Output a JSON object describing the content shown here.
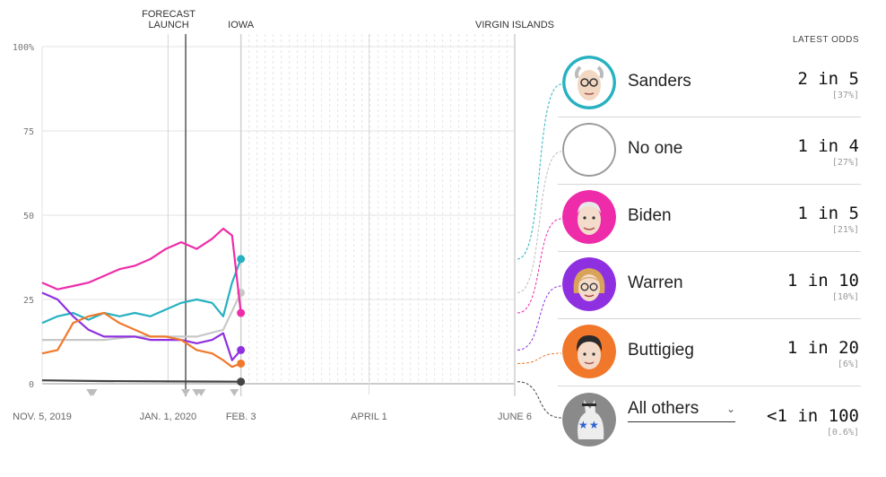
{
  "chart_data": {
    "type": "line",
    "ylim": [
      0,
      100
    ],
    "yticks": [
      "100%",
      "75",
      "50",
      "25",
      "0"
    ],
    "ytick_values": [
      100,
      75,
      50,
      25,
      0
    ],
    "x_range": [
      "2019-11-05",
      "2020-06-06"
    ],
    "xticks": [
      {
        "label": "NOV. 5, 2019",
        "date": "2019-11-05"
      },
      {
        "label": "JAN. 1, 2020",
        "date": "2020-01-01"
      },
      {
        "label": "FEB. 3",
        "date": "2020-02-03"
      },
      {
        "label": "APRIL 1",
        "date": "2020-04-01"
      },
      {
        "label": "JUNE 6",
        "date": "2020-06-06"
      }
    ],
    "events": [
      {
        "label_lines": [
          "FORECAST",
          "LAUNCH"
        ],
        "date": "2020-01-09"
      },
      {
        "label_lines": [
          "IOWA"
        ],
        "date": "2020-02-03"
      },
      {
        "label_lines": [
          "VIRGIN ISLANDS"
        ],
        "date": "2020-06-06"
      }
    ],
    "series": [
      {
        "key": "sanders",
        "color": "#27b1c1",
        "x": [
          "2019-11-05",
          "2019-11-12",
          "2019-11-19",
          "2019-11-26",
          "2019-12-03",
          "2019-12-10",
          "2019-12-17",
          "2019-12-24",
          "2019-12-31",
          "2020-01-07",
          "2020-01-14",
          "2020-01-21",
          "2020-01-26",
          "2020-01-30",
          "2020-02-03"
        ],
        "values": [
          18,
          20,
          21,
          19,
          21,
          20,
          21,
          20,
          22,
          24,
          25,
          24,
          20,
          30,
          37
        ]
      },
      {
        "key": "no_one",
        "color": "#c8c8c8",
        "x": [
          "2019-11-05",
          "2019-11-19",
          "2019-12-03",
          "2019-12-17",
          "2019-12-31",
          "2020-01-14",
          "2020-01-26",
          "2020-02-03"
        ],
        "values": [
          13,
          13,
          13,
          14,
          14,
          14,
          16,
          27
        ]
      },
      {
        "key": "biden",
        "color": "#ee2ca9",
        "x": [
          "2019-11-05",
          "2019-11-12",
          "2019-11-19",
          "2019-11-26",
          "2019-12-03",
          "2019-12-10",
          "2019-12-17",
          "2019-12-24",
          "2019-12-31",
          "2020-01-07",
          "2020-01-14",
          "2020-01-21",
          "2020-01-26",
          "2020-01-30",
          "2020-02-03"
        ],
        "values": [
          30,
          28,
          29,
          30,
          32,
          34,
          35,
          37,
          40,
          42,
          40,
          43,
          46,
          44,
          21
        ]
      },
      {
        "key": "warren",
        "color": "#8f30e0",
        "x": [
          "2019-11-05",
          "2019-11-12",
          "2019-11-19",
          "2019-11-26",
          "2019-12-03",
          "2019-12-10",
          "2019-12-17",
          "2019-12-24",
          "2019-12-31",
          "2020-01-07",
          "2020-01-14",
          "2020-01-21",
          "2020-01-26",
          "2020-01-30",
          "2020-02-03"
        ],
        "values": [
          27,
          25,
          20,
          16,
          14,
          14,
          14,
          13,
          13,
          13,
          12,
          13,
          15,
          7,
          10
        ]
      },
      {
        "key": "buttigieg",
        "color": "#f1782b",
        "x": [
          "2019-11-05",
          "2019-11-12",
          "2019-11-19",
          "2019-11-26",
          "2019-12-03",
          "2019-12-10",
          "2019-12-17",
          "2019-12-24",
          "2019-12-31",
          "2020-01-07",
          "2020-01-14",
          "2020-01-21",
          "2020-01-26",
          "2020-01-30",
          "2020-02-03"
        ],
        "values": [
          9,
          10,
          18,
          20,
          21,
          18,
          16,
          14,
          14,
          13,
          10,
          9,
          7,
          5,
          6
        ]
      },
      {
        "key": "all_others",
        "color": "#444444",
        "x": [
          "2019-11-05",
          "2019-12-01",
          "2020-01-01",
          "2020-02-03"
        ],
        "values": [
          1,
          0.8,
          0.7,
          0.6
        ]
      }
    ]
  },
  "latest_odds_header": "LATEST ODDS",
  "candidates": [
    {
      "key": "sanders",
      "name": "Sanders",
      "odds": "2 in 5",
      "pct": "[37%]",
      "color": "#27b1c1",
      "avatar_icon": "sanders-portrait-icon"
    },
    {
      "key": "no_one",
      "name": "No one",
      "odds": "1 in 4",
      "pct": "[27%]",
      "color": "#999999",
      "avatar_icon": "empty-circle-icon"
    },
    {
      "key": "biden",
      "name": "Biden",
      "odds": "1 in 5",
      "pct": "[21%]",
      "color": "#ee2ca9",
      "avatar_icon": "biden-portrait-icon"
    },
    {
      "key": "warren",
      "name": "Warren",
      "odds": "1 in 10",
      "pct": "[10%]",
      "color": "#8f30e0",
      "avatar_icon": "warren-portrait-icon"
    },
    {
      "key": "buttigieg",
      "name": "Buttigieg",
      "odds": "1 in 20",
      "pct": "[6%]",
      "color": "#f1782b",
      "avatar_icon": "buttigieg-portrait-icon"
    },
    {
      "key": "all_others",
      "name": "All others",
      "odds": "<1 in 100",
      "pct": "[0.6%]",
      "color": "#444444",
      "avatar_icon": "donkey-icon"
    }
  ]
}
